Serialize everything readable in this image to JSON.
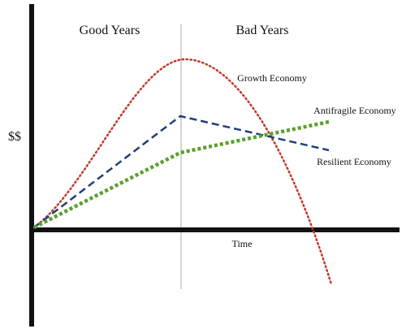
{
  "header": {
    "left": "Good Years",
    "right": "Bad Years"
  },
  "axes": {
    "y_label": "$$",
    "x_label": "Time"
  },
  "lines": [
    {
      "label": "Growth Economy"
    },
    {
      "label": "Antifragile Economy"
    },
    {
      "label": "Resilient Economy"
    }
  ]
}
